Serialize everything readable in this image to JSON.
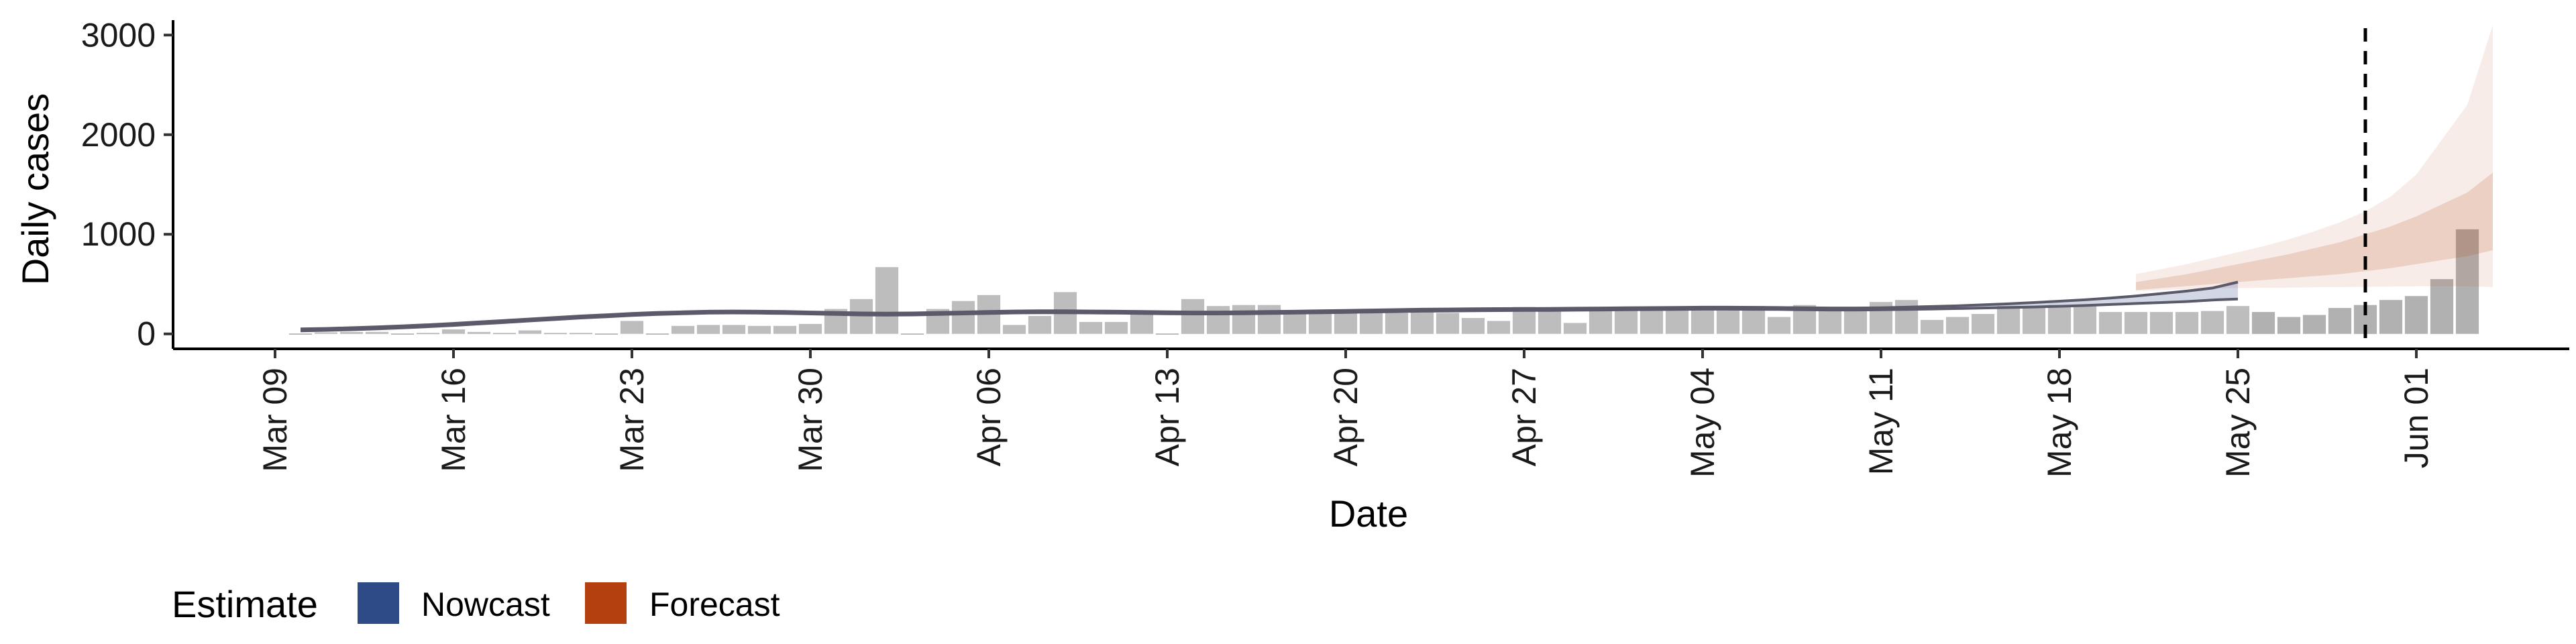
{
  "chart_data": {
    "type": "bar",
    "title": "",
    "xlabel": "Date",
    "ylabel": "Daily cases",
    "ylim": [
      -150,
      3150
    ],
    "y_ticks": [
      0,
      1000,
      2000,
      3000
    ],
    "y_tick_labels": [
      "0",
      "1000",
      "2000",
      "3000"
    ],
    "x_ticks": [
      "2020-03-09",
      "2020-03-16",
      "2020-03-23",
      "2020-03-30",
      "2020-04-06",
      "2020-04-13",
      "2020-04-20",
      "2020-04-27",
      "2020-05-04",
      "2020-05-11",
      "2020-05-18",
      "2020-05-25",
      "2020-06-01"
    ],
    "x_tick_labels": [
      "Mar 09",
      "Mar 16",
      "Mar 23",
      "Mar 30",
      "Apr 06",
      "Apr 13",
      "Apr 20",
      "Apr 27",
      "May 04",
      "May 11",
      "May 18",
      "May 25",
      "Jun 01"
    ],
    "x_range": [
      "2020-03-05",
      "2020-06-07"
    ],
    "grid": false,
    "legend_position": "bottom",
    "reference_line": {
      "date": "2020-05-30",
      "style": "dashed"
    },
    "observed_cases": {
      "start_date": "2020-03-10",
      "values": [
        5,
        15,
        20,
        20,
        5,
        10,
        45,
        20,
        10,
        35,
        10,
        10,
        5,
        130,
        5,
        80,
        90,
        90,
        80,
        80,
        100,
        250,
        350,
        670,
        5,
        250,
        330,
        390,
        90,
        180,
        420,
        120,
        120,
        200,
        5,
        350,
        280,
        290,
        290,
        200,
        200,
        210,
        220,
        210,
        220,
        210,
        160,
        130,
        270,
        260,
        110,
        270,
        270,
        270,
        260,
        280,
        270,
        280,
        170,
        290,
        270,
        270,
        320,
        340,
        140,
        170,
        200,
        280,
        280,
        290,
        290,
        220,
        220,
        220,
        220,
        230,
        280,
        220,
        170,
        190,
        260,
        290,
        340,
        380,
        550,
        1050
      ]
    },
    "series": [
      {
        "name": "Nowcast",
        "color": "#2F4B87",
        "start_date": "2020-03-10",
        "mean": [
          40,
          45,
          52,
          60,
          70,
          82,
          95,
          110,
          125,
          140,
          155,
          170,
          182,
          195,
          205,
          212,
          218,
          220,
          218,
          215,
          210,
          205,
          200,
          198,
          200,
          205,
          210,
          215,
          220,
          222,
          222,
          220,
          218,
          215,
          212,
          210,
          210,
          212,
          215,
          218,
          222,
          226,
          230,
          234,
          238,
          240,
          242,
          244,
          245,
          246,
          248,
          250,
          252,
          254,
          256,
          258,
          258,
          257,
          255,
          252,
          250,
          250,
          252,
          256,
          262,
          268,
          276,
          284,
          292,
          302,
          314,
          328,
          344,
          362,
          382,
          405,
          450
        ],
        "lower": [
          30,
          35,
          42,
          50,
          60,
          72,
          85,
          100,
          115,
          130,
          145,
          160,
          172,
          185,
          195,
          202,
          208,
          210,
          208,
          205,
          200,
          195,
          190,
          188,
          190,
          195,
          200,
          205,
          210,
          212,
          212,
          210,
          208,
          205,
          202,
          200,
          200,
          202,
          205,
          208,
          212,
          216,
          220,
          224,
          228,
          230,
          232,
          234,
          235,
          236,
          238,
          240,
          242,
          244,
          246,
          248,
          248,
          247,
          245,
          242,
          240,
          240,
          242,
          245,
          250,
          255,
          260,
          265,
          270,
          277,
          285,
          295,
          305,
          315,
          325,
          340,
          350
        ],
        "upper": [
          50,
          55,
          62,
          70,
          80,
          92,
          105,
          120,
          135,
          150,
          165,
          180,
          192,
          205,
          215,
          222,
          228,
          230,
          228,
          225,
          220,
          215,
          210,
          208,
          210,
          215,
          220,
          225,
          230,
          232,
          232,
          230,
          228,
          225,
          222,
          220,
          220,
          222,
          225,
          228,
          232,
          236,
          240,
          244,
          248,
          250,
          252,
          254,
          255,
          256,
          258,
          260,
          262,
          264,
          266,
          268,
          268,
          267,
          265,
          262,
          260,
          260,
          262,
          268,
          275,
          282,
          292,
          302,
          315,
          328,
          342,
          360,
          380,
          405,
          430,
          460,
          520
        ]
      },
      {
        "name": "Forecast",
        "color": "#B5400F",
        "start_date": "2020-05-21",
        "lower_90": [
          430,
          440,
          450,
          455,
          460,
          462,
          465,
          468,
          470,
          472,
          475,
          478,
          480,
          478,
          470
        ],
        "upper_90": [
          600,
          650,
          700,
          760,
          820,
          880,
          950,
          1030,
          1120,
          1230,
          1380,
          1600,
          1950,
          2300,
          3100
        ],
        "lower_50": [
          440,
          460,
          480,
          500,
          520,
          540,
          560,
          580,
          600,
          630,
          660,
          700,
          740,
          780,
          840
        ],
        "upper_50": [
          520,
          560,
          600,
          650,
          700,
          750,
          800,
          860,
          920,
          1000,
          1080,
          1180,
          1300,
          1420,
          1620
        ]
      }
    ],
    "legend": {
      "title": "Estimate",
      "items": [
        {
          "label": "Nowcast",
          "color": "#2F4B87"
        },
        {
          "label": "Forecast",
          "color": "#B5400F"
        }
      ]
    }
  }
}
